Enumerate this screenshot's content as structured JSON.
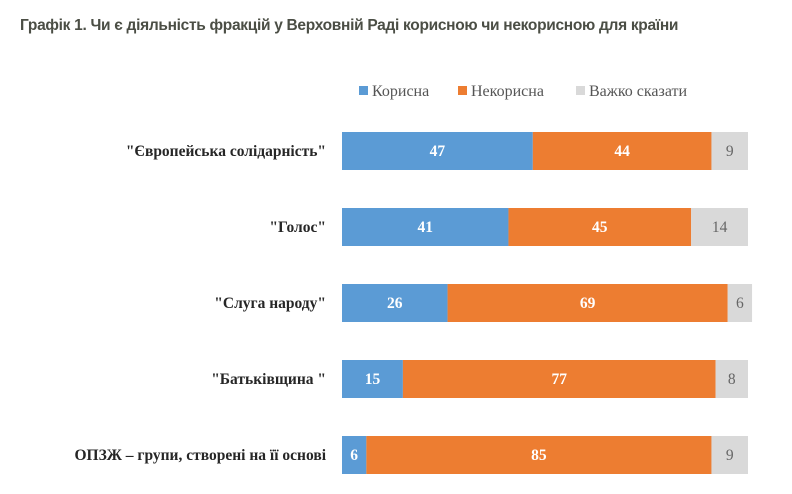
{
  "chart_data": {
    "type": "bar",
    "orientation": "horizontal",
    "stacked": true,
    "title": "Графік 1. Чи є діяльність фракцій у Верховній Раді корисною чи некорисною для країни",
    "xlabel": "",
    "ylabel": "",
    "xlim": [
      0,
      100
    ],
    "grid": false,
    "legend_position": "top",
    "categories": [
      "\"Європейська солідарність\"",
      "\"Голос\"",
      "\"Слуга народу\"",
      "\"Батьківщина \"",
      "ОПЗЖ – групи, створені на її основі"
    ],
    "series": [
      {
        "name": "Корисна",
        "color": "#5b9bd5",
        "values": [
          47,
          41,
          26,
          15,
          6
        ]
      },
      {
        "name": "Некорисна",
        "color": "#ed7d31",
        "values": [
          44,
          45,
          69,
          77,
          85
        ]
      },
      {
        "name": "Важко сказати",
        "color": "#d9d9d9",
        "values": [
          9,
          14,
          6,
          8,
          9
        ]
      }
    ]
  }
}
